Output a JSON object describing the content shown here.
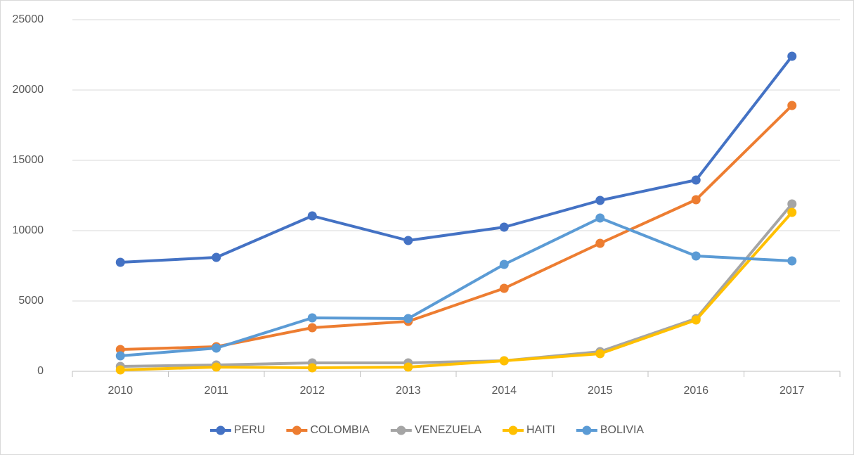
{
  "chart_data": {
    "type": "line",
    "categories": [
      "2010",
      "2011",
      "2012",
      "2013",
      "2014",
      "2015",
      "2016",
      "2017"
    ],
    "series": [
      {
        "name": "PERU",
        "color": "#4472c4",
        "values": [
          7750,
          8100,
          11050,
          9300,
          10250,
          12150,
          13600,
          22400
        ]
      },
      {
        "name": "COLOMBIA",
        "color": "#ed7d31",
        "values": [
          1550,
          1750,
          3100,
          3550,
          5900,
          9100,
          12200,
          18900
        ]
      },
      {
        "name": "VENEZUELA",
        "color": "#a5a5a5",
        "values": [
          350,
          450,
          600,
          600,
          750,
          1400,
          3750,
          11900
        ]
      },
      {
        "name": "HAITI",
        "color": "#ffc000",
        "values": [
          100,
          300,
          250,
          300,
          750,
          1250,
          3650,
          11300
        ]
      },
      {
        "name": "BOLIVIA",
        "color": "#5b9bd5",
        "values": [
          1100,
          1650,
          3800,
          3750,
          7600,
          10900,
          8200,
          7850
        ]
      }
    ],
    "ylim": [
      0,
      25000
    ],
    "yticks": [
      0,
      5000,
      10000,
      15000,
      20000,
      25000
    ],
    "grid": true,
    "legend": "bottom"
  }
}
